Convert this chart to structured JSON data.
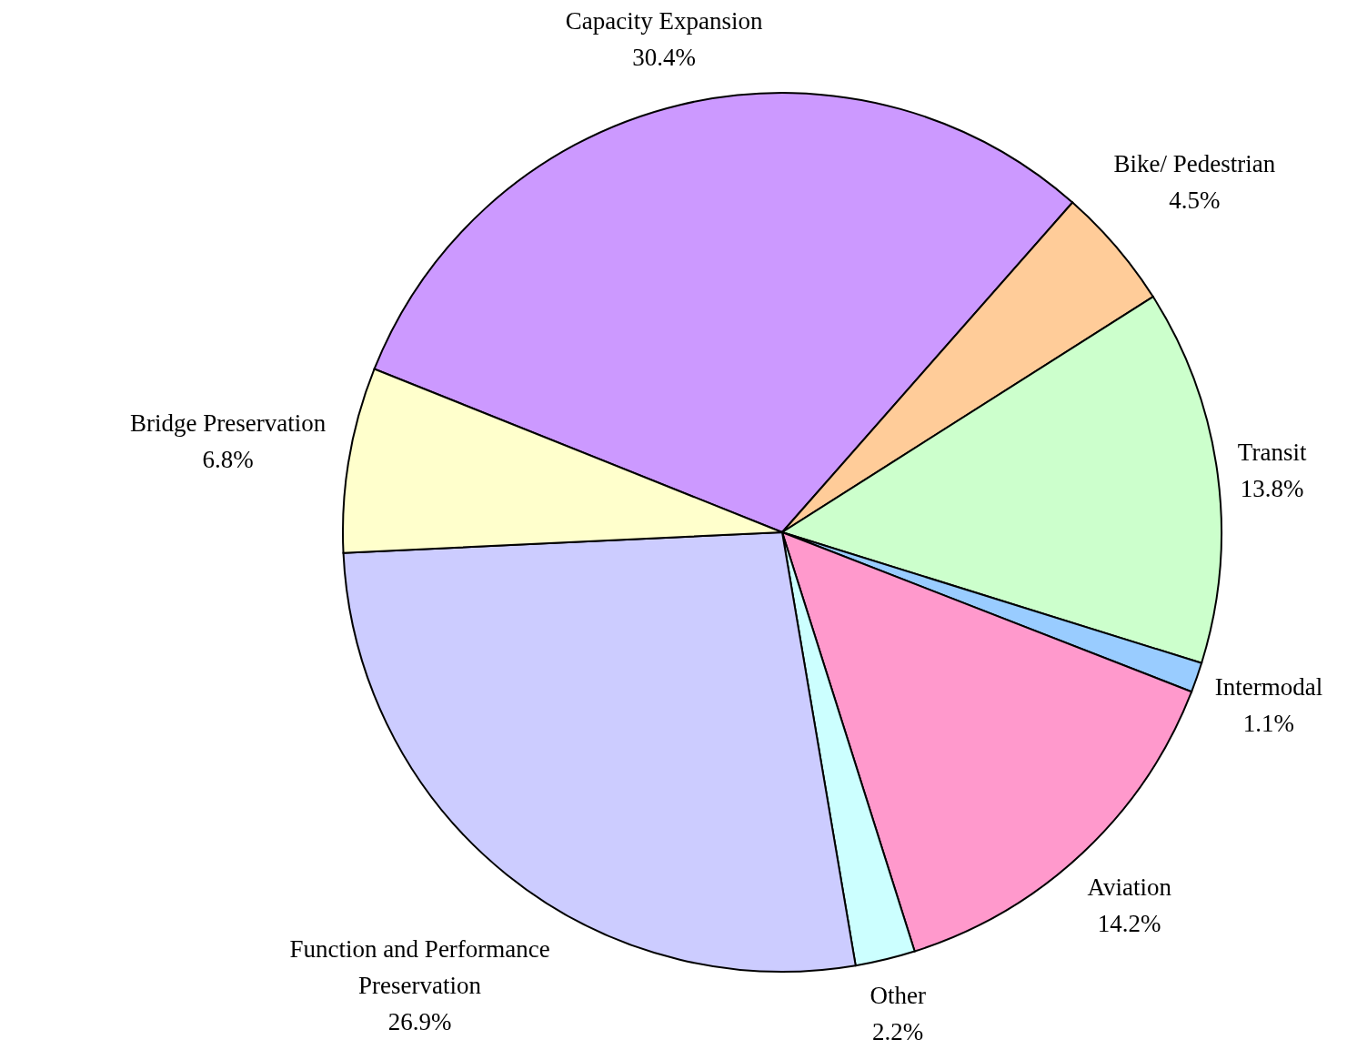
{
  "chart_data": {
    "type": "pie",
    "categories": [
      "Capacity Expansion",
      "Bike/ Pedestrian",
      "Transit",
      "Intermodal",
      "Aviation",
      "Other",
      "Function and Performance Preservation",
      "Bridge Preservation"
    ],
    "values": [
      30.4,
      4.5,
      13.8,
      1.1,
      14.2,
      2.2,
      26.9,
      6.8
    ],
    "value_labels": [
      "30.4%",
      "4.5%",
      "13.8%",
      "1.1%",
      "14.2%",
      "2.2%",
      "26.9%",
      "6.8%"
    ],
    "colors": [
      "#cc99ff",
      "#ffcc99",
      "#ccffcc",
      "#99ccff",
      "#ff99cc",
      "#ccffff",
      "#ccccff",
      "#ffffcc"
    ]
  }
}
